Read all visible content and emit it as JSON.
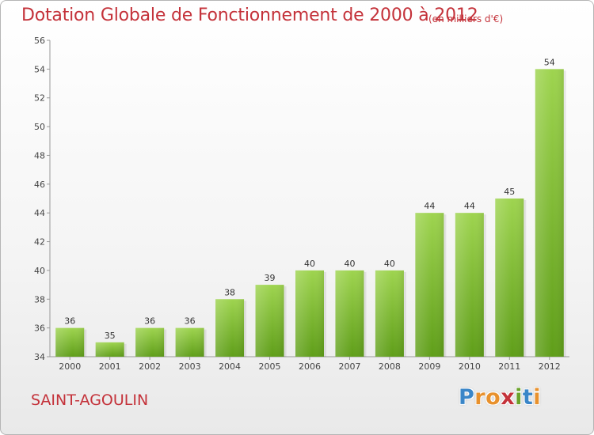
{
  "header": {
    "title": "Dotation Globale de Fonctionnement de 2000 à 2012",
    "subtitle": "(en milliers d'€)"
  },
  "footer": {
    "commune": "SAINT-AGOULIN",
    "logo": {
      "letters": [
        "P",
        "r",
        "o",
        "x",
        "i",
        "t",
        "i"
      ],
      "colors": [
        "#3a86c8",
        "#e8912d",
        "#e8912d",
        "#c4323a",
        "#6aa32a",
        "#3a86c8",
        "#e8912d"
      ]
    }
  },
  "chart_data": {
    "type": "bar",
    "title": "Dotation Globale de Fonctionnement de 2000 à 2012",
    "subtitle": "(en milliers d'€)",
    "xlabel": "",
    "ylabel": "",
    "categories": [
      "2000",
      "2001",
      "2002",
      "2003",
      "2004",
      "2005",
      "2006",
      "2007",
      "2008",
      "2009",
      "2010",
      "2011",
      "2012"
    ],
    "values": [
      36,
      35,
      36,
      36,
      38,
      39,
      40,
      40,
      40,
      44,
      44,
      45,
      54
    ],
    "ylim": [
      34,
      56
    ],
    "yticks": [
      34,
      36,
      38,
      40,
      42,
      44,
      46,
      48,
      50,
      52,
      54,
      56
    ],
    "grid": false,
    "legend": "none",
    "colors": {
      "bar_top": "#9ed44f",
      "bar_bottom": "#5f9e19",
      "axis": "#999999"
    }
  }
}
